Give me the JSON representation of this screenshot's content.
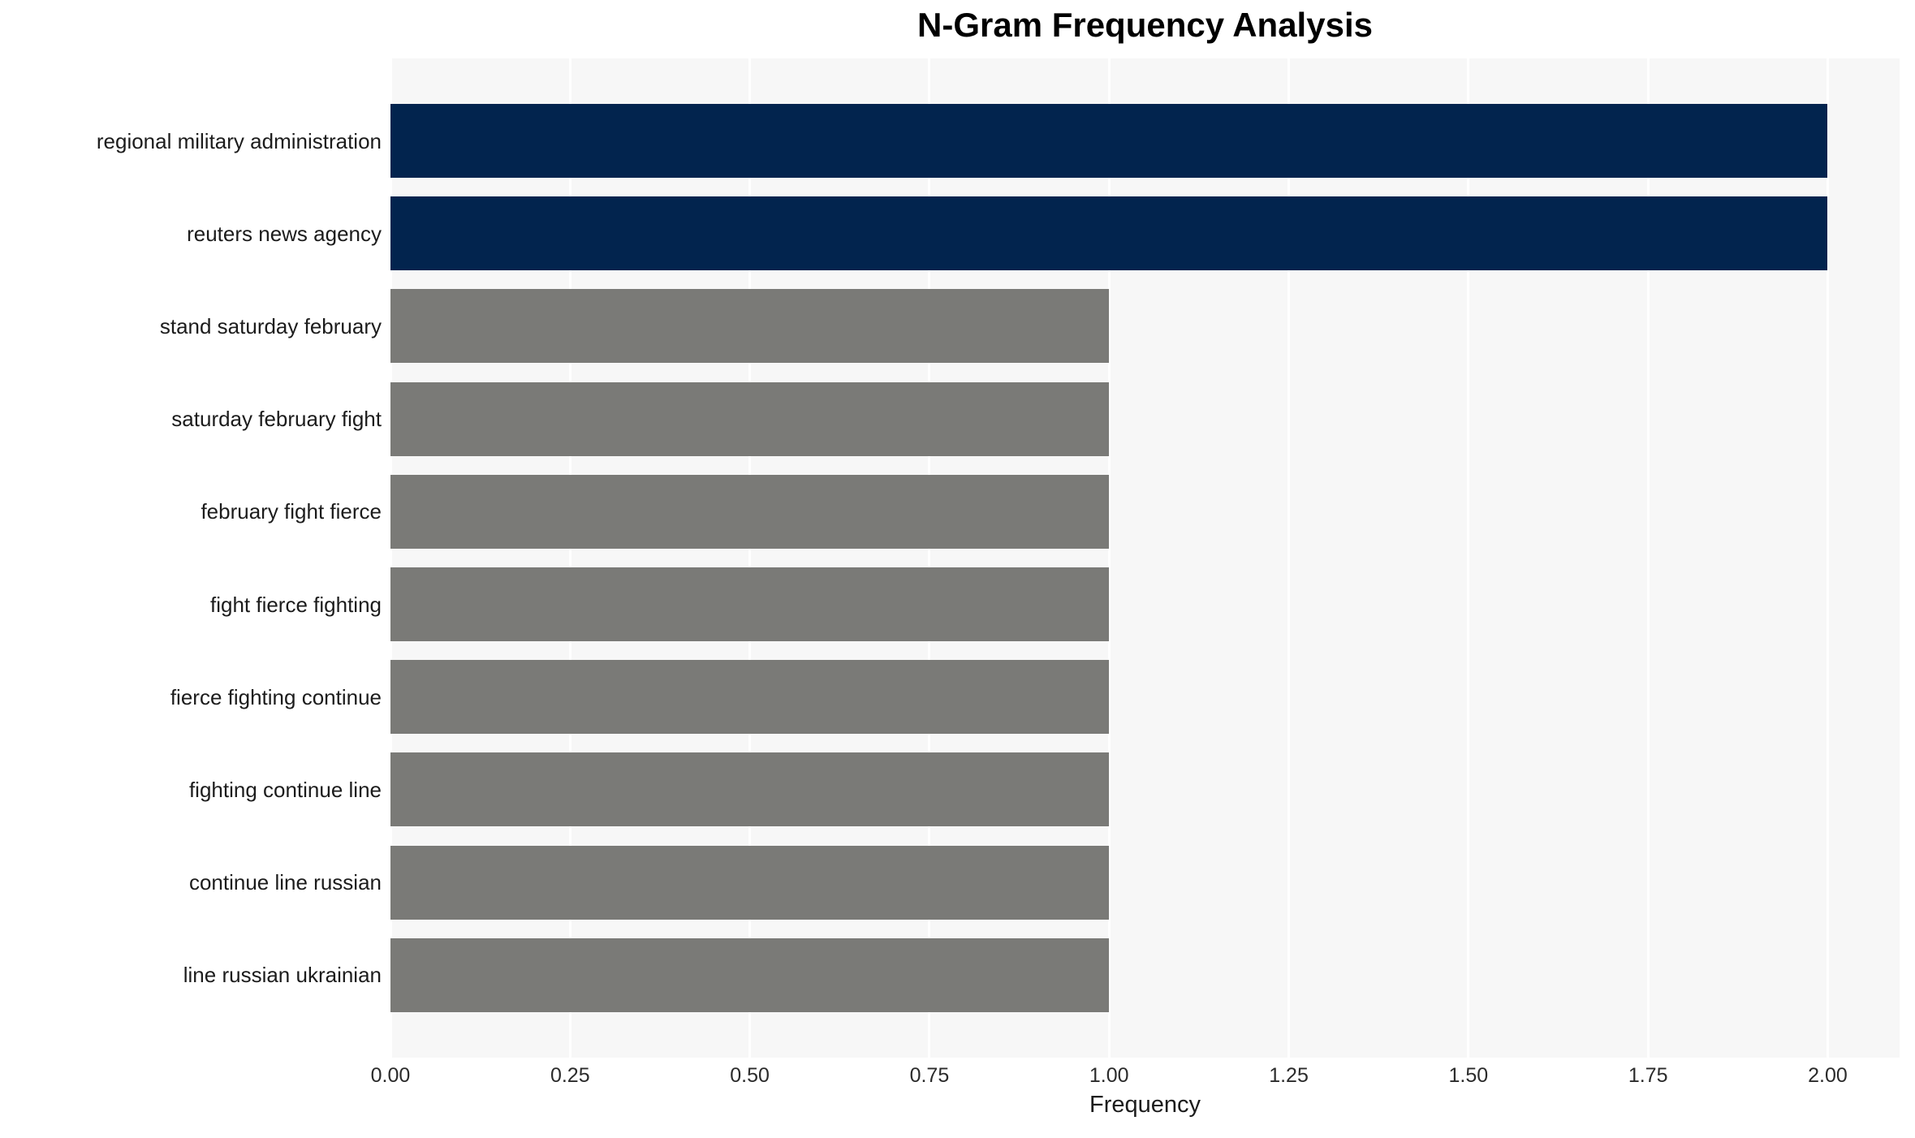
{
  "chart_data": {
    "type": "bar",
    "orientation": "horizontal",
    "title": "N-Gram Frequency Analysis",
    "xlabel": "Frequency",
    "ylabel": "",
    "categories": [
      "regional military administration",
      "reuters news agency",
      "stand saturday february",
      "saturday february fight",
      "february fight fierce",
      "fight fierce fighting",
      "fierce fighting continue",
      "fighting continue line",
      "continue line russian",
      "line russian ukrainian"
    ],
    "values": [
      2,
      2,
      1,
      1,
      1,
      1,
      1,
      1,
      1,
      1
    ],
    "bar_colors": [
      "#02244e",
      "#02244e",
      "#7a7a77",
      "#7a7a77",
      "#7a7a77",
      "#7a7a77",
      "#7a7a77",
      "#7a7a77",
      "#7a7a77",
      "#7a7a77"
    ],
    "xtick_labels": [
      "0.00",
      "0.25",
      "0.50",
      "0.75",
      "1.00",
      "1.25",
      "1.50",
      "1.75",
      "2.00"
    ],
    "xtick_values": [
      0,
      0.25,
      0.5,
      0.75,
      1.0,
      1.25,
      1.5,
      1.75,
      2.0
    ],
    "xlim": [
      0,
      2.1
    ],
    "grid": true,
    "gridline_color": "#ffffff",
    "plot_background": "#f7f7f7",
    "legend": false
  }
}
